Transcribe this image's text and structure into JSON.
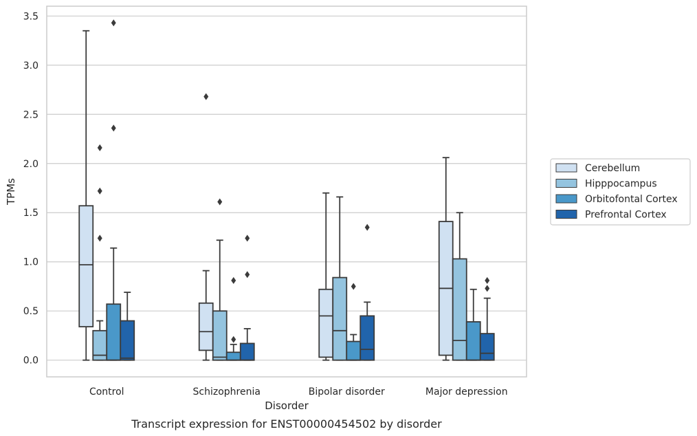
{
  "caption": "Transcript expression for ENST00000454502 by disorder",
  "chart_data": {
    "type": "boxplot",
    "title": "",
    "xlabel": "Disorder",
    "ylabel": "TPMs",
    "ylim": [
      -0.17,
      3.6
    ],
    "yticks": [
      0.0,
      0.5,
      1.0,
      1.5,
      2.0,
      2.5,
      3.0,
      3.5
    ],
    "ytick_labels": [
      "0.0",
      "0.5",
      "1.0",
      "1.5",
      "2.0",
      "2.5",
      "3.0",
      "3.5"
    ],
    "grid": "horizontal",
    "legend_position": "right",
    "categories": [
      "Control",
      "Schizophrenia",
      "Bipolar disorder",
      "Major depression"
    ],
    "series": [
      {
        "name": "Cerebellum",
        "color": "#d0e1f2",
        "boxes": [
          {
            "whislo": 0.0,
            "q1": 0.34,
            "med": 0.97,
            "q3": 1.57,
            "whishi": 3.35,
            "fliers": []
          },
          {
            "whislo": 0.0,
            "q1": 0.1,
            "med": 0.29,
            "q3": 0.58,
            "whishi": 0.91,
            "fliers": [
              2.68
            ]
          },
          {
            "whislo": 0.0,
            "q1": 0.03,
            "med": 0.45,
            "q3": 0.72,
            "whishi": 1.7,
            "fliers": []
          },
          {
            "whislo": 0.0,
            "q1": 0.05,
            "med": 0.73,
            "q3": 1.41,
            "whishi": 2.06,
            "fliers": []
          }
        ]
      },
      {
        "name": "Hipppocampus",
        "color": "#94c4df",
        "boxes": [
          {
            "whislo": 0.0,
            "q1": 0.0,
            "med": 0.05,
            "q3": 0.3,
            "whishi": 0.4,
            "fliers": [
              1.24,
              1.72,
              2.16
            ]
          },
          {
            "whislo": 0.0,
            "q1": 0.0,
            "med": 0.03,
            "q3": 0.5,
            "whishi": 1.22,
            "fliers": [
              1.61
            ]
          },
          {
            "whislo": 0.0,
            "q1": 0.0,
            "med": 0.3,
            "q3": 0.84,
            "whishi": 1.66,
            "fliers": []
          },
          {
            "whislo": 0.0,
            "q1": 0.0,
            "med": 0.2,
            "q3": 1.03,
            "whishi": 1.5,
            "fliers": []
          }
        ]
      },
      {
        "name": "Orbitofontal Cortex",
        "color": "#4a98c9",
        "boxes": [
          {
            "whislo": 0.0,
            "q1": 0.0,
            "med": 0.0,
            "q3": 0.57,
            "whishi": 1.14,
            "fliers": [
              2.36,
              3.43
            ]
          },
          {
            "whislo": 0.0,
            "q1": 0.0,
            "med": 0.0,
            "q3": 0.08,
            "whishi": 0.16,
            "fliers": [
              0.21,
              0.81
            ]
          },
          {
            "whislo": 0.0,
            "q1": 0.0,
            "med": 0.0,
            "q3": 0.19,
            "whishi": 0.26,
            "fliers": [
              0.75
            ]
          },
          {
            "whislo": 0.0,
            "q1": 0.0,
            "med": 0.0,
            "q3": 0.39,
            "whishi": 0.72,
            "fliers": []
          }
        ]
      },
      {
        "name": "Prefrontal Cortex",
        "color": "#2164ab",
        "boxes": [
          {
            "whislo": 0.0,
            "q1": 0.0,
            "med": 0.02,
            "q3": 0.4,
            "whishi": 0.69,
            "fliers": []
          },
          {
            "whislo": 0.0,
            "q1": 0.0,
            "med": 0.0,
            "q3": 0.17,
            "whishi": 0.32,
            "fliers": [
              0.87,
              1.24
            ]
          },
          {
            "whislo": 0.0,
            "q1": 0.0,
            "med": 0.11,
            "q3": 0.45,
            "whishi": 0.59,
            "fliers": [
              1.35
            ]
          },
          {
            "whislo": 0.0,
            "q1": 0.0,
            "med": 0.07,
            "q3": 0.27,
            "whishi": 0.63,
            "fliers": [
              0.73,
              0.81
            ]
          }
        ]
      }
    ]
  }
}
